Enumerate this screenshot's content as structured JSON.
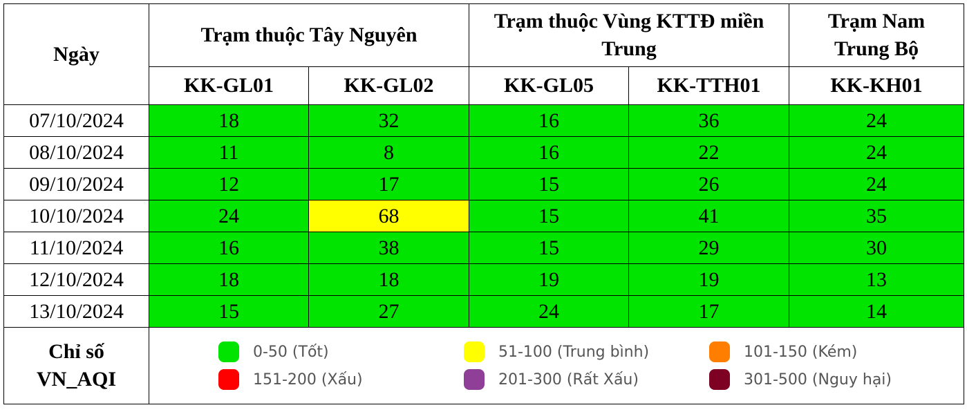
{
  "header": {
    "date_label": "Ngày",
    "groups": [
      {
        "label": "Trạm thuộc Tây Nguyên"
      },
      {
        "label": "Trạm thuộc Vùng KTTĐ miền Trung"
      },
      {
        "label": "Trạm Nam Trung Bộ"
      }
    ],
    "stations": [
      "KK-GL01",
      "KK-GL02",
      "KK-GL05",
      "KK-TTH01",
      "KK-KH01"
    ]
  },
  "rows": [
    {
      "date": "07/10/2024",
      "values": [
        "18",
        "32",
        "16",
        "36",
        "24"
      ],
      "levels": [
        "good",
        "good",
        "good",
        "good",
        "good"
      ]
    },
    {
      "date": "08/10/2024",
      "values": [
        "11",
        "8",
        "16",
        "22",
        "24"
      ],
      "levels": [
        "good",
        "good",
        "good",
        "good",
        "good"
      ]
    },
    {
      "date": "09/10/2024",
      "values": [
        "12",
        "17",
        "15",
        "26",
        "24"
      ],
      "levels": [
        "good",
        "good",
        "good",
        "good",
        "good"
      ]
    },
    {
      "date": "10/10/2024",
      "values": [
        "24",
        "68",
        "15",
        "41",
        "35"
      ],
      "levels": [
        "good",
        "moderate",
        "good",
        "good",
        "good"
      ]
    },
    {
      "date": "11/10/2024",
      "values": [
        "16",
        "38",
        "15",
        "29",
        "30"
      ],
      "levels": [
        "good",
        "good",
        "good",
        "good",
        "good"
      ]
    },
    {
      "date": "12/10/2024",
      "values": [
        "18",
        "18",
        "19",
        "19",
        "13"
      ],
      "levels": [
        "good",
        "good",
        "good",
        "good",
        "good"
      ]
    },
    {
      "date": "13/10/2024",
      "values": [
        "15",
        "27",
        "24",
        "17",
        "14"
      ],
      "levels": [
        "good",
        "good",
        "good",
        "good",
        "good"
      ]
    }
  ],
  "legend": {
    "label": "Chỉ số VN_AQI",
    "items": [
      {
        "text": "0-50 (Tốt)",
        "color": "#00e400"
      },
      {
        "text": "51-100 (Trung bình)",
        "color": "#ffff00"
      },
      {
        "text": "101-150 (Kém)",
        "color": "#ff7e00"
      },
      {
        "text": "151-200 (Xấu)",
        "color": "#ff0000"
      },
      {
        "text": "201-300 (Rất Xấu)",
        "color": "#8f3f97"
      },
      {
        "text": "301-500 (Nguy hại)",
        "color": "#7e0023"
      }
    ]
  }
}
